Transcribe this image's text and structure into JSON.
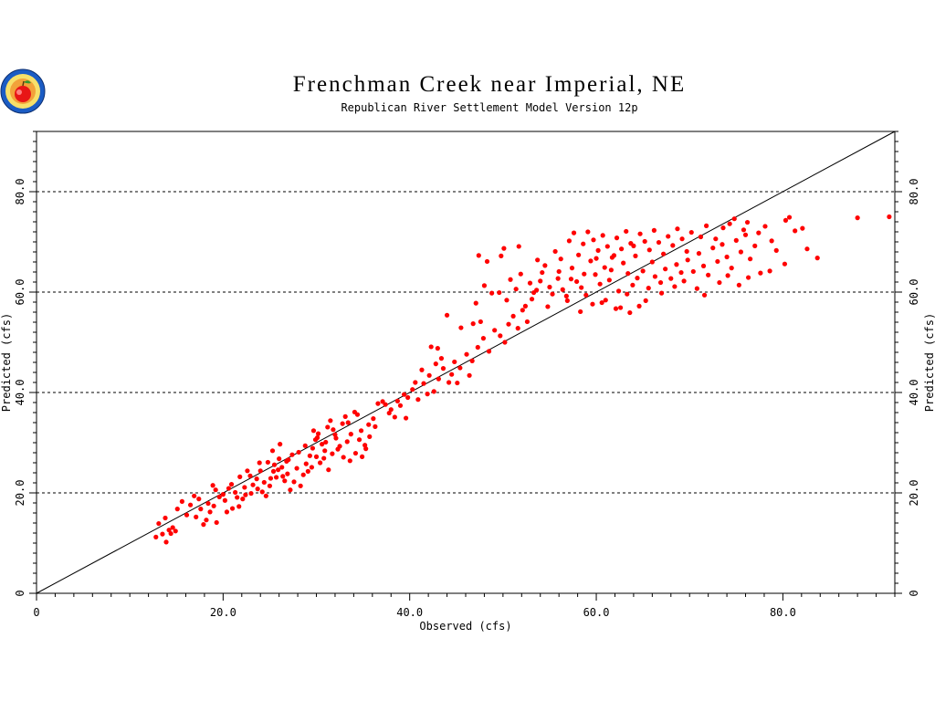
{
  "chart_data": {
    "type": "scatter",
    "title": "Frenchman Creek near Imperial, NE",
    "subtitle": "Republican River Settlement Model Version 12p",
    "xlabel": "Observed (cfs)",
    "ylabel": "Predicted (cfs)",
    "xlim": [
      0,
      92
    ],
    "ylim": [
      0,
      92
    ],
    "x_ticks": [
      "0",
      "20.0",
      "40.0",
      "60.0",
      "80.0"
    ],
    "y_ticks": [
      "0",
      "20.0",
      "40.0",
      "60.0",
      "80.0"
    ],
    "gridlines_y": [
      20,
      40,
      60,
      80
    ],
    "reference_line": "1:1",
    "point_color": "#ff0000",
    "points": [
      [
        12.8,
        11.2
      ],
      [
        13.1,
        13.9
      ],
      [
        13.5,
        11.8
      ],
      [
        13.9,
        10.2
      ],
      [
        14.2,
        12.6
      ],
      [
        14.6,
        13.1
      ],
      [
        14.9,
        12.4
      ],
      [
        15.1,
        16.8
      ],
      [
        13.8,
        15.0
      ],
      [
        14.4,
        11.9
      ],
      [
        16.5,
        17.6
      ],
      [
        16.9,
        19.4
      ],
      [
        17.4,
        18.8
      ],
      [
        17.1,
        15.2
      ],
      [
        18.2,
        14.6
      ],
      [
        18.6,
        16.2
      ],
      [
        19.0,
        17.4
      ],
      [
        18.9,
        21.5
      ],
      [
        19.6,
        19.2
      ],
      [
        20.2,
        18.5
      ],
      [
        20.6,
        20.9
      ],
      [
        20.9,
        21.7
      ],
      [
        21.3,
        20.1
      ],
      [
        21.7,
        17.3
      ],
      [
        22.1,
        18.8
      ],
      [
        22.4,
        19.6
      ],
      [
        22.9,
        23.4
      ],
      [
        23.2,
        21.6
      ],
      [
        23.6,
        22.8
      ],
      [
        24.0,
        24.4
      ],
      [
        24.2,
        20.2
      ],
      [
        24.6,
        19.4
      ],
      [
        25.1,
        22.9
      ],
      [
        25.4,
        24.3
      ],
      [
        25.7,
        23.1
      ],
      [
        26.0,
        26.8
      ],
      [
        26.3,
        25.1
      ],
      [
        26.6,
        22.4
      ],
      [
        26.9,
        23.8
      ],
      [
        27.2,
        20.6
      ],
      [
        27.6,
        22.2
      ],
      [
        27.9,
        24.9
      ],
      [
        28.3,
        21.4
      ],
      [
        28.6,
        23.6
      ],
      [
        28.9,
        25.8
      ],
      [
        29.3,
        27.4
      ],
      [
        29.6,
        28.9
      ],
      [
        29.9,
        30.6
      ],
      [
        30.2,
        31.8
      ],
      [
        30.6,
        29.7
      ],
      [
        30.9,
        28.4
      ],
      [
        31.2,
        33.1
      ],
      [
        31.5,
        34.4
      ],
      [
        31.8,
        32.6
      ],
      [
        32.1,
        30.9
      ],
      [
        32.5,
        29.3
      ],
      [
        32.8,
        33.8
      ],
      [
        33.1,
        35.2
      ],
      [
        33.4,
        34.0
      ],
      [
        33.7,
        31.7
      ],
      [
        34.1,
        36.1
      ],
      [
        34.4,
        35.6
      ],
      [
        34.8,
        32.4
      ],
      [
        35.2,
        29.5
      ],
      [
        35.6,
        33.6
      ],
      [
        36.1,
        34.8
      ],
      [
        36.6,
        37.8
      ],
      [
        37.1,
        38.2
      ],
      [
        37.8,
        35.9
      ],
      [
        38.4,
        35.1
      ],
      [
        29.1,
        24.3
      ],
      [
        29.5,
        25.1
      ],
      [
        30.0,
        27.2
      ],
      [
        30.4,
        26.0
      ],
      [
        30.8,
        26.9
      ],
      [
        31.3,
        24.6
      ],
      [
        31.7,
        27.8
      ],
      [
        32.3,
        28.7
      ],
      [
        32.9,
        27.1
      ],
      [
        33.6,
        26.4
      ],
      [
        34.2,
        27.9
      ],
      [
        34.9,
        27.2
      ],
      [
        35.3,
        28.8
      ],
      [
        27.0,
        26.6
      ],
      [
        26.1,
        29.7
      ],
      [
        25.3,
        28.4
      ],
      [
        24.8,
        26.1
      ],
      [
        23.9,
        26.0
      ],
      [
        22.6,
        24.4
      ],
      [
        21.8,
        23.2
      ],
      [
        20.4,
        16.2
      ],
      [
        19.3,
        14.1
      ],
      [
        17.9,
        13.7
      ],
      [
        16.1,
        15.6
      ],
      [
        15.6,
        18.3
      ],
      [
        39.8,
        39.0
      ],
      [
        40.3,
        40.6
      ],
      [
        40.9,
        38.6
      ],
      [
        41.5,
        41.8
      ],
      [
        42.1,
        43.4
      ],
      [
        42.6,
        40.2
      ],
      [
        43.1,
        42.7
      ],
      [
        43.6,
        44.8
      ],
      [
        44.2,
        42.0
      ],
      [
        44.8,
        46.1
      ],
      [
        45.4,
        44.9
      ],
      [
        46.1,
        47.6
      ],
      [
        46.7,
        46.3
      ],
      [
        47.3,
        49.0
      ],
      [
        47.9,
        50.8
      ],
      [
        48.5,
        48.2
      ],
      [
        49.1,
        52.4
      ],
      [
        49.7,
        51.3
      ],
      [
        50.2,
        50.0
      ],
      [
        50.6,
        53.6
      ],
      [
        51.1,
        55.2
      ],
      [
        51.6,
        52.8
      ],
      [
        52.1,
        56.4
      ],
      [
        52.6,
        54.1
      ],
      [
        53.1,
        58.6
      ],
      [
        42.3,
        49.1
      ],
      [
        43.0,
        48.8
      ],
      [
        44.0,
        55.4
      ],
      [
        45.5,
        52.9
      ],
      [
        46.8,
        53.7
      ],
      [
        47.6,
        54.1
      ],
      [
        47.1,
        57.8
      ],
      [
        48.0,
        61.3
      ],
      [
        48.8,
        59.8
      ],
      [
        47.4,
        67.3
      ],
      [
        48.3,
        66.1
      ],
      [
        49.8,
        67.2
      ],
      [
        50.1,
        68.7
      ],
      [
        51.7,
        69.1
      ],
      [
        53.7,
        66.4
      ],
      [
        49.6,
        59.9
      ],
      [
        50.8,
        62.5
      ],
      [
        51.9,
        63.6
      ],
      [
        52.9,
        61.8
      ],
      [
        53.6,
        60.4
      ],
      [
        54.2,
        63.9
      ],
      [
        54.8,
        57.1
      ],
      [
        55.3,
        59.6
      ],
      [
        55.9,
        62.7
      ],
      [
        56.4,
        60.5
      ],
      [
        56.9,
        58.3
      ],
      [
        57.4,
        64.8
      ],
      [
        57.9,
        62.1
      ],
      [
        58.4,
        60.9
      ],
      [
        58.9,
        59.4
      ],
      [
        59.4,
        66.2
      ],
      [
        59.9,
        63.5
      ],
      [
        60.4,
        61.6
      ],
      [
        60.9,
        64.9
      ],
      [
        61.4,
        62.4
      ],
      [
        61.9,
        67.3
      ],
      [
        62.4,
        60.2
      ],
      [
        62.9,
        65.8
      ],
      [
        63.4,
        63.7
      ],
      [
        63.9,
        61.4
      ],
      [
        54.5,
        65.3
      ],
      [
        55.6,
        68.1
      ],
      [
        56.2,
        66.6
      ],
      [
        57.1,
        70.2
      ],
      [
        57.6,
        71.8
      ],
      [
        58.1,
        67.4
      ],
      [
        58.6,
        69.6
      ],
      [
        59.1,
        72.0
      ],
      [
        59.7,
        70.4
      ],
      [
        60.2,
        68.3
      ],
      [
        60.7,
        71.3
      ],
      [
        61.2,
        69.1
      ],
      [
        61.7,
        66.9
      ],
      [
        62.2,
        70.8
      ],
      [
        62.7,
        68.6
      ],
      [
        63.2,
        72.1
      ],
      [
        63.7,
        69.7
      ],
      [
        64.2,
        67.2
      ],
      [
        64.7,
        71.6
      ],
      [
        65.2,
        70.1
      ],
      [
        65.7,
        68.4
      ],
      [
        66.2,
        72.3
      ],
      [
        66.7,
        69.9
      ],
      [
        67.2,
        67.6
      ],
      [
        67.7,
        71.1
      ],
      [
        68.2,
        69.3
      ],
      [
        68.7,
        72.6
      ],
      [
        69.2,
        70.6
      ],
      [
        69.7,
        68.1
      ],
      [
        70.2,
        71.9
      ],
      [
        56.8,
        59.2
      ],
      [
        58.3,
        56.1
      ],
      [
        59.6,
        57.6
      ],
      [
        61.0,
        58.4
      ],
      [
        62.6,
        56.9
      ],
      [
        63.3,
        59.6
      ],
      [
        64.4,
        62.8
      ],
      [
        65.0,
        64.2
      ],
      [
        65.6,
        60.8
      ],
      [
        66.3,
        63.1
      ],
      [
        66.9,
        61.9
      ],
      [
        67.4,
        64.6
      ],
      [
        68.0,
        62.7
      ],
      [
        68.6,
        65.5
      ],
      [
        69.1,
        63.9
      ],
      [
        69.8,
        66.4
      ],
      [
        70.4,
        64.1
      ],
      [
        71.0,
        67.7
      ],
      [
        71.5,
        65.2
      ],
      [
        72.0,
        63.4
      ],
      [
        72.5,
        68.8
      ],
      [
        73.0,
        66.1
      ],
      [
        73.5,
        69.5
      ],
      [
        74.0,
        67.0
      ],
      [
        74.5,
        64.8
      ],
      [
        75.0,
        70.3
      ],
      [
        75.5,
        68.0
      ],
      [
        76.0,
        71.4
      ],
      [
        76.5,
        66.6
      ],
      [
        77.0,
        69.2
      ],
      [
        71.2,
        71.0
      ],
      [
        71.8,
        73.2
      ],
      [
        72.8,
        70.6
      ],
      [
        73.6,
        72.8
      ],
      [
        74.3,
        73.6
      ],
      [
        74.8,
        74.6
      ],
      [
        75.8,
        72.4
      ],
      [
        76.2,
        73.9
      ],
      [
        77.4,
        71.8
      ],
      [
        78.1,
        73.1
      ],
      [
        78.8,
        70.2
      ],
      [
        79.3,
        68.3
      ],
      [
        80.3,
        74.3
      ],
      [
        80.7,
        74.9
      ],
      [
        81.3,
        72.2
      ],
      [
        82.1,
        72.7
      ],
      [
        82.6,
        68.6
      ],
      [
        83.7,
        66.8
      ],
      [
        80.2,
        65.6
      ],
      [
        78.6,
        64.2
      ],
      [
        77.6,
        63.8
      ],
      [
        76.3,
        62.9
      ],
      [
        75.3,
        61.4
      ],
      [
        74.1,
        63.3
      ],
      [
        73.2,
        61.9
      ],
      [
        71.6,
        59.4
      ],
      [
        70.8,
        60.7
      ],
      [
        69.4,
        62.2
      ],
      [
        68.4,
        61.1
      ],
      [
        67.0,
        59.8
      ],
      [
        65.3,
        58.3
      ],
      [
        64.6,
        57.2
      ],
      [
        63.6,
        55.9
      ],
      [
        62.1,
        56.7
      ],
      [
        60.6,
        57.9
      ],
      [
        88.0,
        74.8
      ],
      [
        91.4,
        75.0
      ],
      [
        66.0,
        66.0
      ],
      [
        64.0,
        69.2
      ],
      [
        61.6,
        64.4
      ],
      [
        60.0,
        66.7
      ],
      [
        58.7,
        63.6
      ],
      [
        57.3,
        62.6
      ],
      [
        56.0,
        64.1
      ],
      [
        55.0,
        61.0
      ],
      [
        54.0,
        62.2
      ],
      [
        53.3,
        59.9
      ],
      [
        52.4,
        57.2
      ],
      [
        51.4,
        60.6
      ],
      [
        50.4,
        58.4
      ],
      [
        36.3,
        33.2
      ],
      [
        37.4,
        37.6
      ],
      [
        38.0,
        36.6
      ],
      [
        39.0,
        37.4
      ],
      [
        39.6,
        34.9
      ],
      [
        35.7,
        31.2
      ],
      [
        34.6,
        30.6
      ],
      [
        33.3,
        30.2
      ],
      [
        32.0,
        31.6
      ],
      [
        31.0,
        30.1
      ],
      [
        30.1,
        31.0
      ],
      [
        29.7,
        32.4
      ],
      [
        28.8,
        29.4
      ],
      [
        28.1,
        28.1
      ],
      [
        27.4,
        27.6
      ],
      [
        26.8,
        26.3
      ],
      [
        26.4,
        23.3
      ],
      [
        25.9,
        24.6
      ],
      [
        25.5,
        25.6
      ],
      [
        25.0,
        21.4
      ],
      [
        24.4,
        22.1
      ],
      [
        23.7,
        20.8
      ],
      [
        23.0,
        19.9
      ],
      [
        22.3,
        21.1
      ],
      [
        21.5,
        19.1
      ],
      [
        21.0,
        16.9
      ],
      [
        20.0,
        19.7
      ],
      [
        19.2,
        20.6
      ],
      [
        18.4,
        17.9
      ],
      [
        17.6,
        16.8
      ],
      [
        44.5,
        43.6
      ],
      [
        45.1,
        41.9
      ],
      [
        46.4,
        43.4
      ],
      [
        43.4,
        46.8
      ],
      [
        42.8,
        45.7
      ],
      [
        41.3,
        44.5
      ],
      [
        40.6,
        42.0
      ],
      [
        41.9,
        39.7
      ],
      [
        39.4,
        39.6
      ],
      [
        38.7,
        38.3
      ]
    ]
  }
}
